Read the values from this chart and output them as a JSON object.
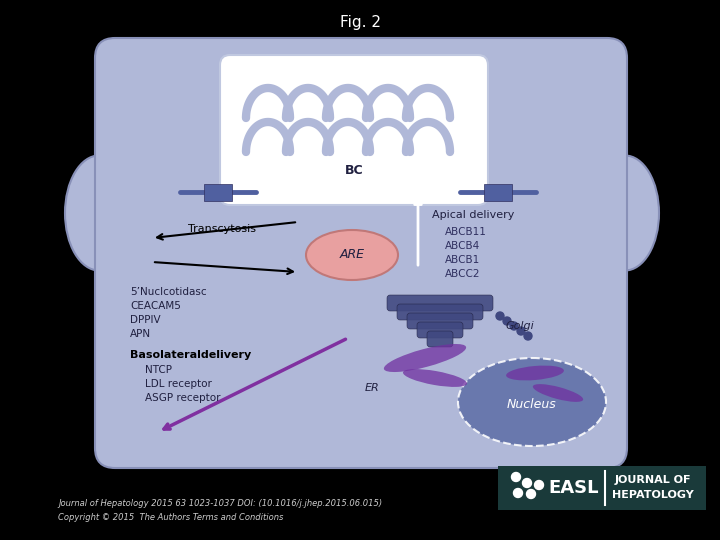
{
  "title": "Fig. 2",
  "title_fontsize": 11,
  "bg_color": "#000000",
  "cell_bg": "#b0b8d8",
  "cell_border": "#8890b8",
  "tight_junction_color": "#5060a0",
  "bc_label": "BC",
  "are_fill": "#e8a0a0",
  "are_label": "ARE",
  "golgi_label": "Golgi",
  "er_label": "ER",
  "nucleus_label": "Nucleus",
  "nucleus_fill": "#6070a8",
  "golgi_fill": "#404880",
  "purple_er_fill": "#7030a0",
  "apical_delivery_label": "Apical delivery",
  "apical_proteins": [
    "ABCB11",
    "ABCB4",
    "ABCB1",
    "ABCC2"
  ],
  "transcytosis_label": "Transcytosis",
  "basolateral_label": "Basolateraldelivery",
  "basolateral_proteins": [
    "NTCP",
    "LDL receptor",
    "ASGP receptor"
  ],
  "apical_proteins_5n": [
    "5’Nuclcotidasc",
    "CEACAM5",
    "DPPIV",
    "APN"
  ],
  "footnote1": "Journal of Hepatology 2015 63 1023-1037 DOI: (10.1016/j.jhep.2015.06.015)",
  "footnote2": "Copyright © 2015  The Authors Terms and Conditions",
  "easl_bg": "#1a3a3a"
}
